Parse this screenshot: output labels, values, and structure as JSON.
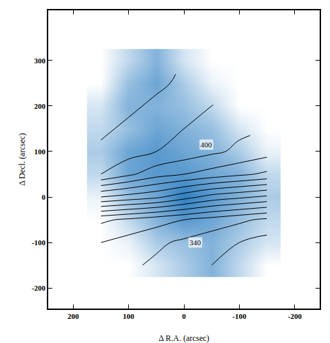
{
  "chart_data": {
    "type": "contour",
    "xlabel": "Δ R.A. (arcsec)",
    "ylabel": "Δ Decl. (arcsec)",
    "x": [
      150,
      100,
      50,
      0,
      -50,
      -100,
      -150
    ],
    "y": [
      -150,
      -100,
      -50,
      0,
      50,
      100,
      150,
      200,
      250,
      300
    ],
    "velocity": [
      [
        null,
        346,
        344,
        342,
        340,
        338,
        336
      ],
      [
        350,
        348,
        346,
        344,
        342,
        340,
        338
      ],
      [
        356,
        354,
        352,
        350,
        348,
        346,
        344
      ],
      [
        380,
        378,
        376,
        372,
        368,
        366,
        364
      ],
      [
        400,
        396,
        392,
        390,
        388,
        386,
        384
      ],
      [
        404,
        402,
        400,
        398,
        396,
        394,
        392
      ],
      [
        406,
        404,
        402,
        400,
        398,
        396,
        null
      ],
      [
        410,
        406,
        404,
        402,
        400,
        null,
        null
      ],
      [
        null,
        408,
        406,
        404,
        null,
        null,
        null
      ],
      [
        null,
        410,
        408,
        null,
        null,
        null,
        null
      ]
    ],
    "intensity": [
      [
        0,
        0,
        0.2,
        0.4,
        0.6,
        0.3,
        0
      ],
      [
        0,
        0.1,
        0.4,
        0.5,
        0.6,
        0.4,
        0.2
      ],
      [
        0,
        0.3,
        0.6,
        0.8,
        0.7,
        0.5,
        0.3
      ],
      [
        0.1,
        0.5,
        0.7,
        1.0,
        0.8,
        0.6,
        0.4
      ],
      [
        0.3,
        0.7,
        0.8,
        0.8,
        0.7,
        0.6,
        0.3
      ],
      [
        0.4,
        0.7,
        0.8,
        0.7,
        0.6,
        0.4,
        0.1
      ],
      [
        0.3,
        0.5,
        0.7,
        0.6,
        0.5,
        0.2,
        0
      ],
      [
        0.2,
        0.6,
        0.6,
        0.5,
        0.3,
        0,
        0
      ],
      [
        0,
        0.5,
        0.7,
        0.4,
        0.1,
        0,
        0
      ],
      [
        0,
        0.3,
        0.6,
        0.2,
        0,
        0,
        0
      ]
    ],
    "contour_levels": {
      "start": 340,
      "end": 410,
      "size": 5
    },
    "annotations": [
      {
        "text": "400",
        "x": -40,
        "y": 115
      },
      {
        "text": "340",
        "x": -20,
        "y": -100
      }
    ],
    "xlim": [
      245,
      -245
    ],
    "ylim": [
      -245,
      410
    ],
    "xticks": [
      200,
      100,
      0,
      -100,
      -200
    ],
    "yticks": [
      -200,
      -100,
      0,
      100,
      200,
      300
    ],
    "color": "#2f7fc1"
  }
}
